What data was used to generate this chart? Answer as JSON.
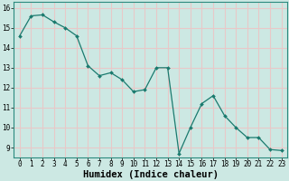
{
  "x": [
    0,
    1,
    2,
    3,
    4,
    5,
    6,
    7,
    8,
    9,
    10,
    11,
    12,
    13,
    14,
    15,
    16,
    17,
    18,
    19,
    20,
    21,
    22,
    23
  ],
  "y": [
    14.6,
    15.6,
    15.65,
    15.3,
    15.0,
    14.6,
    13.1,
    12.6,
    12.75,
    12.4,
    11.8,
    11.9,
    13.0,
    13.0,
    8.7,
    10.0,
    11.2,
    11.6,
    10.6,
    10.0,
    9.5,
    9.5,
    8.9,
    8.85
  ],
  "xlabel": "Humidex (Indice chaleur)",
  "line_color": "#1a7a6e",
  "marker_color": "#1a7a6e",
  "bg_plot": "#cce8e3",
  "bg_fig": "#cce8e3",
  "grid_color": "#e8c8c8",
  "ylim": [
    8.5,
    16.3
  ],
  "xlim": [
    -0.5,
    23.5
  ],
  "yticks": [
    9,
    10,
    11,
    12,
    13,
    14,
    15,
    16
  ],
  "xticks": [
    0,
    1,
    2,
    3,
    4,
    5,
    6,
    7,
    8,
    9,
    10,
    11,
    12,
    13,
    14,
    15,
    16,
    17,
    18,
    19,
    20,
    21,
    22,
    23
  ],
  "tick_fontsize": 5.5,
  "xlabel_fontsize": 7.5
}
